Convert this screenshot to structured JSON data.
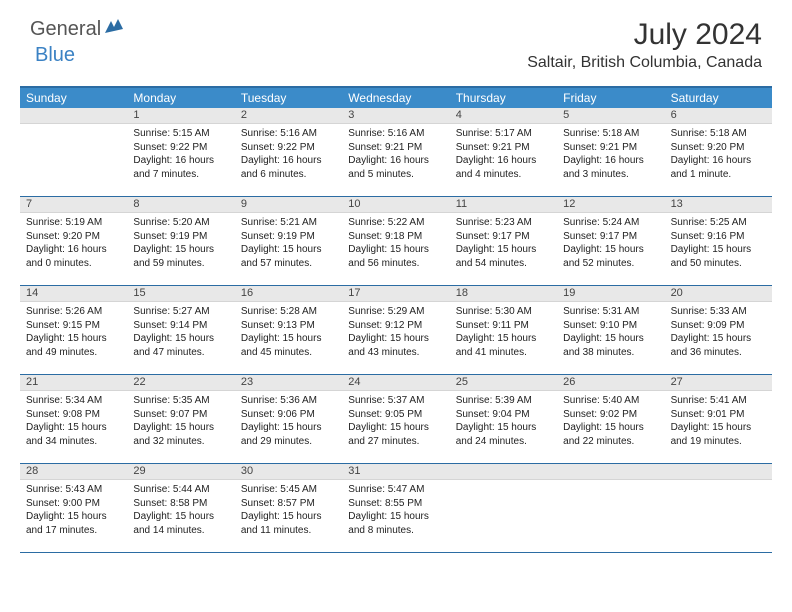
{
  "brand": {
    "part1": "General",
    "part2": "Blue"
  },
  "title": "July 2024",
  "location": "Saltair, British Columbia, Canada",
  "colors": {
    "header_bg": "#3b8bc9",
    "strip_bg": "#e8e8e8",
    "border": "#2b6ca3",
    "brand_accent": "#3b82c4"
  },
  "dayNames": [
    "Sunday",
    "Monday",
    "Tuesday",
    "Wednesday",
    "Thursday",
    "Friday",
    "Saturday"
  ],
  "layout": {
    "cols": 7,
    "rows": 5,
    "cell_min_h": 88
  },
  "weeks": [
    [
      {
        "date": "",
        "sunrise": "",
        "sunset": "",
        "daylight": ""
      },
      {
        "date": "1",
        "sunrise": "Sunrise: 5:15 AM",
        "sunset": "Sunset: 9:22 PM",
        "daylight": "Daylight: 16 hours and 7 minutes."
      },
      {
        "date": "2",
        "sunrise": "Sunrise: 5:16 AM",
        "sunset": "Sunset: 9:22 PM",
        "daylight": "Daylight: 16 hours and 6 minutes."
      },
      {
        "date": "3",
        "sunrise": "Sunrise: 5:16 AM",
        "sunset": "Sunset: 9:21 PM",
        "daylight": "Daylight: 16 hours and 5 minutes."
      },
      {
        "date": "4",
        "sunrise": "Sunrise: 5:17 AM",
        "sunset": "Sunset: 9:21 PM",
        "daylight": "Daylight: 16 hours and 4 minutes."
      },
      {
        "date": "5",
        "sunrise": "Sunrise: 5:18 AM",
        "sunset": "Sunset: 9:21 PM",
        "daylight": "Daylight: 16 hours and 3 minutes."
      },
      {
        "date": "6",
        "sunrise": "Sunrise: 5:18 AM",
        "sunset": "Sunset: 9:20 PM",
        "daylight": "Daylight: 16 hours and 1 minute."
      }
    ],
    [
      {
        "date": "7",
        "sunrise": "Sunrise: 5:19 AM",
        "sunset": "Sunset: 9:20 PM",
        "daylight": "Daylight: 16 hours and 0 minutes."
      },
      {
        "date": "8",
        "sunrise": "Sunrise: 5:20 AM",
        "sunset": "Sunset: 9:19 PM",
        "daylight": "Daylight: 15 hours and 59 minutes."
      },
      {
        "date": "9",
        "sunrise": "Sunrise: 5:21 AM",
        "sunset": "Sunset: 9:19 PM",
        "daylight": "Daylight: 15 hours and 57 minutes."
      },
      {
        "date": "10",
        "sunrise": "Sunrise: 5:22 AM",
        "sunset": "Sunset: 9:18 PM",
        "daylight": "Daylight: 15 hours and 56 minutes."
      },
      {
        "date": "11",
        "sunrise": "Sunrise: 5:23 AM",
        "sunset": "Sunset: 9:17 PM",
        "daylight": "Daylight: 15 hours and 54 minutes."
      },
      {
        "date": "12",
        "sunrise": "Sunrise: 5:24 AM",
        "sunset": "Sunset: 9:17 PM",
        "daylight": "Daylight: 15 hours and 52 minutes."
      },
      {
        "date": "13",
        "sunrise": "Sunrise: 5:25 AM",
        "sunset": "Sunset: 9:16 PM",
        "daylight": "Daylight: 15 hours and 50 minutes."
      }
    ],
    [
      {
        "date": "14",
        "sunrise": "Sunrise: 5:26 AM",
        "sunset": "Sunset: 9:15 PM",
        "daylight": "Daylight: 15 hours and 49 minutes."
      },
      {
        "date": "15",
        "sunrise": "Sunrise: 5:27 AM",
        "sunset": "Sunset: 9:14 PM",
        "daylight": "Daylight: 15 hours and 47 minutes."
      },
      {
        "date": "16",
        "sunrise": "Sunrise: 5:28 AM",
        "sunset": "Sunset: 9:13 PM",
        "daylight": "Daylight: 15 hours and 45 minutes."
      },
      {
        "date": "17",
        "sunrise": "Sunrise: 5:29 AM",
        "sunset": "Sunset: 9:12 PM",
        "daylight": "Daylight: 15 hours and 43 minutes."
      },
      {
        "date": "18",
        "sunrise": "Sunrise: 5:30 AM",
        "sunset": "Sunset: 9:11 PM",
        "daylight": "Daylight: 15 hours and 41 minutes."
      },
      {
        "date": "19",
        "sunrise": "Sunrise: 5:31 AM",
        "sunset": "Sunset: 9:10 PM",
        "daylight": "Daylight: 15 hours and 38 minutes."
      },
      {
        "date": "20",
        "sunrise": "Sunrise: 5:33 AM",
        "sunset": "Sunset: 9:09 PM",
        "daylight": "Daylight: 15 hours and 36 minutes."
      }
    ],
    [
      {
        "date": "21",
        "sunrise": "Sunrise: 5:34 AM",
        "sunset": "Sunset: 9:08 PM",
        "daylight": "Daylight: 15 hours and 34 minutes."
      },
      {
        "date": "22",
        "sunrise": "Sunrise: 5:35 AM",
        "sunset": "Sunset: 9:07 PM",
        "daylight": "Daylight: 15 hours and 32 minutes."
      },
      {
        "date": "23",
        "sunrise": "Sunrise: 5:36 AM",
        "sunset": "Sunset: 9:06 PM",
        "daylight": "Daylight: 15 hours and 29 minutes."
      },
      {
        "date": "24",
        "sunrise": "Sunrise: 5:37 AM",
        "sunset": "Sunset: 9:05 PM",
        "daylight": "Daylight: 15 hours and 27 minutes."
      },
      {
        "date": "25",
        "sunrise": "Sunrise: 5:39 AM",
        "sunset": "Sunset: 9:04 PM",
        "daylight": "Daylight: 15 hours and 24 minutes."
      },
      {
        "date": "26",
        "sunrise": "Sunrise: 5:40 AM",
        "sunset": "Sunset: 9:02 PM",
        "daylight": "Daylight: 15 hours and 22 minutes."
      },
      {
        "date": "27",
        "sunrise": "Sunrise: 5:41 AM",
        "sunset": "Sunset: 9:01 PM",
        "daylight": "Daylight: 15 hours and 19 minutes."
      }
    ],
    [
      {
        "date": "28",
        "sunrise": "Sunrise: 5:43 AM",
        "sunset": "Sunset: 9:00 PM",
        "daylight": "Daylight: 15 hours and 17 minutes."
      },
      {
        "date": "29",
        "sunrise": "Sunrise: 5:44 AM",
        "sunset": "Sunset: 8:58 PM",
        "daylight": "Daylight: 15 hours and 14 minutes."
      },
      {
        "date": "30",
        "sunrise": "Sunrise: 5:45 AM",
        "sunset": "Sunset: 8:57 PM",
        "daylight": "Daylight: 15 hours and 11 minutes."
      },
      {
        "date": "31",
        "sunrise": "Sunrise: 5:47 AM",
        "sunset": "Sunset: 8:55 PM",
        "daylight": "Daylight: 15 hours and 8 minutes."
      },
      {
        "date": "",
        "sunrise": "",
        "sunset": "",
        "daylight": ""
      },
      {
        "date": "",
        "sunrise": "",
        "sunset": "",
        "daylight": ""
      },
      {
        "date": "",
        "sunrise": "",
        "sunset": "",
        "daylight": ""
      }
    ]
  ]
}
